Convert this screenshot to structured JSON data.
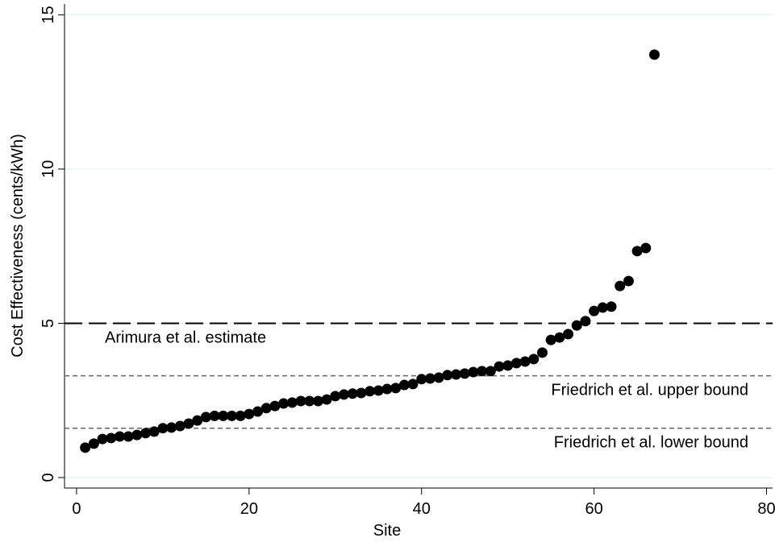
{
  "chart_data": {
    "type": "scatter",
    "xlabel": "Site",
    "ylabel": "Cost Effectiveness (cents/kWh)",
    "x": [
      1,
      2,
      3,
      4,
      5,
      6,
      7,
      8,
      9,
      10,
      11,
      12,
      13,
      14,
      15,
      16,
      17,
      18,
      19,
      20,
      21,
      22,
      23,
      24,
      25,
      26,
      27,
      28,
      29,
      30,
      31,
      32,
      33,
      34,
      35,
      36,
      37,
      38,
      39,
      40,
      41,
      42,
      43,
      44,
      45,
      46,
      47,
      48,
      49,
      50,
      51,
      52,
      53,
      54,
      55,
      56,
      57,
      58,
      59,
      60,
      61,
      62,
      63,
      64,
      65,
      66,
      67
    ],
    "values": [
      0.97,
      1.1,
      1.25,
      1.28,
      1.33,
      1.33,
      1.38,
      1.44,
      1.49,
      1.6,
      1.62,
      1.67,
      1.75,
      1.85,
      1.96,
      2.0,
      2.0,
      2.0,
      2.0,
      2.06,
      2.14,
      2.25,
      2.32,
      2.4,
      2.43,
      2.48,
      2.48,
      2.48,
      2.53,
      2.64,
      2.69,
      2.72,
      2.74,
      2.8,
      2.82,
      2.87,
      2.9,
      3.0,
      3.03,
      3.19,
      3.21,
      3.24,
      3.32,
      3.34,
      3.37,
      3.42,
      3.45,
      3.45,
      3.6,
      3.63,
      3.71,
      3.76,
      3.84,
      4.05,
      4.46,
      4.54,
      4.65,
      4.93,
      5.07,
      5.4,
      5.51,
      5.54,
      6.21,
      6.37,
      7.34,
      7.44,
      13.71
    ],
    "color": "#000000",
    "xlim": [
      -1.4,
      80.7
    ],
    "ylim": [
      -0.34,
      15.35
    ],
    "xticks": [
      0,
      20,
      40,
      60,
      80
    ],
    "yticks": [
      0,
      5,
      10,
      15
    ],
    "grid": true,
    "reference_lines": [
      {
        "value": 5,
        "label": "Arimura et al. estimate",
        "color": "#000000"
      },
      {
        "value": 3.3,
        "label": "Friedrich et al. upper bound",
        "color": "#666666"
      },
      {
        "value": 1.6,
        "label": "Friedrich et al. lower bound",
        "color": "#666666"
      }
    ]
  }
}
